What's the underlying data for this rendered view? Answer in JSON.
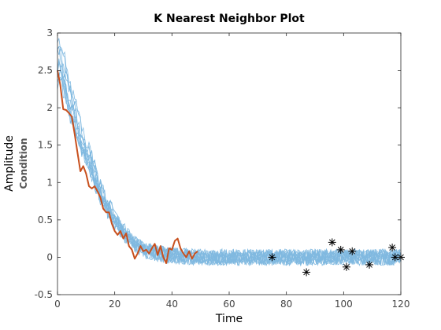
{
  "chart_data": {
    "type": "line",
    "title": "K Nearest Neighbor Plot",
    "xlabel": "Time",
    "ylabel": "Amplitude",
    "ylabel_sub": "Condition",
    "xlim": [
      0,
      120
    ],
    "ylim": [
      -0.5,
      3
    ],
    "xticks": [
      0,
      20,
      40,
      60,
      80,
      100,
      120
    ],
    "yticks": [
      -0.5,
      0,
      0.5,
      1,
      1.5,
      2,
      2.5,
      3
    ],
    "grid": false,
    "colors": {
      "neighbors": "#80B9E0",
      "query": "#C8501E",
      "markers": "#000000"
    },
    "neighbor_count": 12,
    "neighbors_trend": {
      "x": [
        0,
        1,
        2,
        4,
        6,
        8,
        10,
        12,
        14,
        16,
        18,
        20,
        22,
        24,
        26,
        28,
        30,
        35,
        40,
        50,
        60,
        80,
        100,
        120
      ],
      "y": [
        2.6,
        2.6,
        2.45,
        2.15,
        1.9,
        1.6,
        1.4,
        1.2,
        0.98,
        0.8,
        0.65,
        0.5,
        0.4,
        0.3,
        0.22,
        0.16,
        0.1,
        0.05,
        0.02,
        0.0,
        0.0,
        0.0,
        0.0,
        0.0
      ]
    },
    "query_series": {
      "x": [
        0,
        1,
        2,
        3,
        4,
        5,
        6,
        7,
        8,
        9,
        10,
        11,
        12,
        13,
        14,
        15,
        16,
        17,
        18,
        19,
        20,
        21,
        22,
        23,
        24,
        25,
        26,
        27,
        28,
        29,
        30,
        31,
        32,
        33,
        34,
        35,
        36,
        37,
        38,
        39,
        40,
        41,
        42,
        43,
        44,
        45,
        46,
        47,
        48,
        49
      ],
      "y": [
        2.5,
        2.3,
        1.98,
        1.97,
        1.93,
        1.88,
        1.65,
        1.4,
        1.15,
        1.22,
        1.12,
        0.95,
        0.92,
        0.95,
        0.88,
        0.8,
        0.65,
        0.6,
        0.6,
        0.45,
        0.35,
        0.3,
        0.35,
        0.25,
        0.32,
        0.15,
        0.1,
        -0.02,
        0.05,
        0.15,
        0.08,
        0.1,
        0.05,
        0.12,
        0.18,
        0.03,
        0.15,
        0.0,
        -0.08,
        0.12,
        0.1,
        0.22,
        0.25,
        0.12,
        0.05,
        0.0,
        0.08,
        -0.02,
        0.05,
        0.08
      ]
    },
    "markers": {
      "x": [
        75,
        87,
        96,
        99,
        101,
        103,
        109,
        117,
        118,
        120
      ],
      "y": [
        0.0,
        -0.2,
        0.2,
        0.1,
        -0.13,
        0.08,
        -0.1,
        0.13,
        0.0,
        0.0
      ]
    }
  }
}
